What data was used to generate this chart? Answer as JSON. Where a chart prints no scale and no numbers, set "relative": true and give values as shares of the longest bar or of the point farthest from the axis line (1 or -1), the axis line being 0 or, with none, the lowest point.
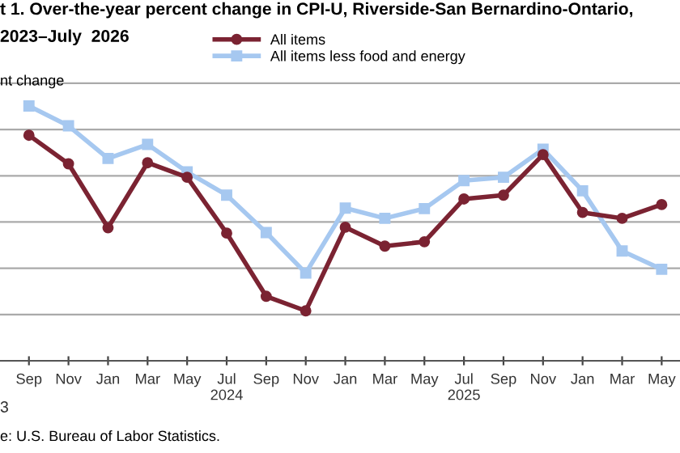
{
  "chart_data": {
    "type": "line",
    "title": "t 1. Over-the-year percent change in CPI-U, Riverside-San Bernardino-Ontario,",
    "subtitle": "2023–July  2026",
    "ylabel": "nt change",
    "annotations": [
      "3",
      "e: U.S. Bureau of Labor Statistics."
    ],
    "categories": [
      "Sep",
      "Nov",
      "Jan",
      "Mar",
      "May",
      "Jul\n2024",
      "Sep",
      "Nov",
      "Jan",
      "Mar",
      "May",
      "Jul\n2025",
      "Sep",
      "Nov",
      "Jan",
      "Mar",
      "May"
    ],
    "relative": true,
    "grid": "y",
    "legend": "top",
    "series": [
      {
        "name": "All items",
        "color": "#7b2332",
        "marker": "circle",
        "values": [
          0.885,
          0.773,
          0.522,
          0.777,
          0.72,
          0.501,
          0.253,
          0.196,
          0.524,
          0.45,
          0.467,
          0.635,
          0.65,
          0.809,
          0.582,
          0.559,
          0.613
        ]
      },
      {
        "name": "All items less food and energy",
        "color": "#a6c8f0",
        "marker": "square",
        "values": [
          1,
          0.922,
          0.794,
          0.849,
          0.741,
          0.65,
          0.503,
          0.344,
          0.599,
          0.559,
          0.597,
          0.707,
          0.72,
          0.83,
          0.667,
          0.431,
          0.359
        ]
      }
    ]
  }
}
